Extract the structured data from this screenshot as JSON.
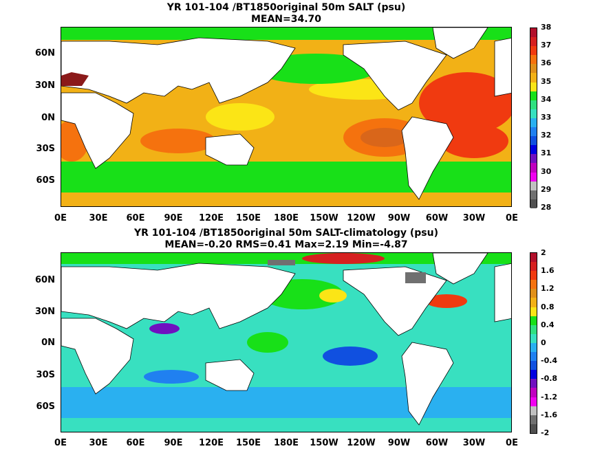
{
  "panels": [
    {
      "title": "YR 101-104 /BT1850original 50m SALT (psu)",
      "subtitle": "MEAN=34.70",
      "colorbar_labels": [
        "38",
        "37",
        "36",
        "35",
        "34",
        "33",
        "32",
        "31",
        "30",
        "29",
        "28"
      ],
      "colorbar_colors": [
        "#b2102b",
        "#d62020",
        "#f03a10",
        "#f5720e",
        "#e0901a",
        "#f2b116",
        "#fbe516",
        "#18e018",
        "#30e080",
        "#38e0c0",
        "#2ab0f0",
        "#2080f0",
        "#1050e0",
        "#0000e0",
        "#7010c0",
        "#c000c0",
        "#f000f0",
        "#c0c0c0",
        "#707070",
        "#505050"
      ]
    },
    {
      "title": "YR 101-104 /BT1850original 50m SALT-climatology (psu)",
      "subtitle": "MEAN=-0.20   RMS=0.41   Max=2.19   Min=-4.87",
      "colorbar_labels": [
        "2",
        "1.6",
        "1.2",
        "0.8",
        "0.4",
        "0",
        "-0.4",
        "-0.8",
        "-1.2",
        "-1.6",
        "-2"
      ],
      "colorbar_colors": [
        "#b2102b",
        "#d62020",
        "#f03a10",
        "#f5720e",
        "#e0901a",
        "#f2b116",
        "#fbe516",
        "#18e018",
        "#30e080",
        "#38e0c0",
        "#2ab0f0",
        "#2080f0",
        "#1050e0",
        "#0000e0",
        "#7010c0",
        "#c000c0",
        "#f000f0",
        "#c0c0c0",
        "#707070",
        "#505050"
      ]
    }
  ],
  "y_ticks": [
    "60N",
    "30N",
    "0N",
    "30S",
    "60S"
  ],
  "x_ticks": [
    "0E",
    "30E",
    "60E",
    "90E",
    "120E",
    "150E",
    "180E",
    "150W",
    "120W",
    "90W",
    "60W",
    "30W",
    "0E"
  ]
}
